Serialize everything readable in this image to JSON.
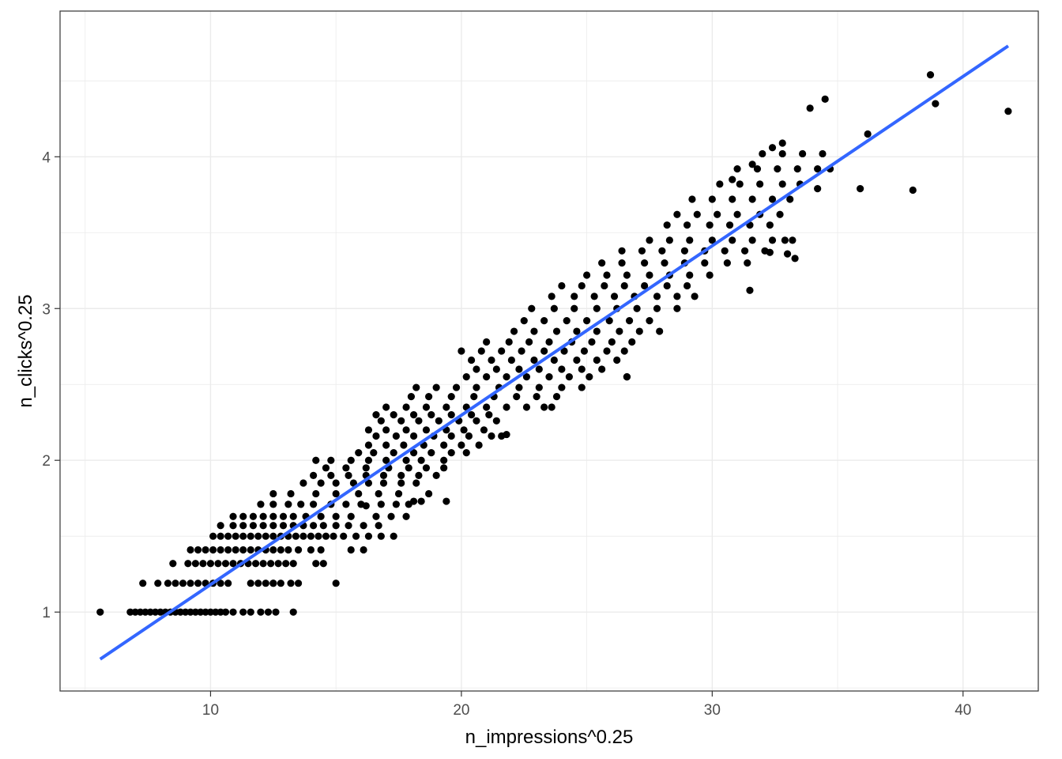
{
  "chart_data": {
    "type": "scatter",
    "xlabel": "n_impressions^0.25",
    "ylabel": "n_clicks^0.25",
    "xlim": [
      4.0,
      43.0
    ],
    "ylim": [
      0.48,
      4.96
    ],
    "x_ticks": [
      10,
      20,
      30,
      40
    ],
    "y_ticks": [
      1,
      2,
      3,
      4
    ],
    "grid": true,
    "legend": "none",
    "colors": {
      "points": "#000000",
      "fit": "#3366ff",
      "grid": "#ebebeb",
      "panel_border": "#333333"
    },
    "fit_line": {
      "method": "linear",
      "x": [
        5.6,
        41.8
      ],
      "y": [
        0.69,
        4.73
      ]
    },
    "points": [
      [
        5.6,
        1.0
      ],
      [
        6.8,
        1.0
      ],
      [
        7.0,
        1.0
      ],
      [
        7.2,
        1.0
      ],
      [
        7.4,
        1.0
      ],
      [
        7.6,
        1.0
      ],
      [
        7.8,
        1.0
      ],
      [
        8.0,
        1.0
      ],
      [
        8.2,
        1.0
      ],
      [
        8.4,
        1.0
      ],
      [
        8.6,
        1.0
      ],
      [
        8.8,
        1.0
      ],
      [
        9.0,
        1.0
      ],
      [
        9.2,
        1.0
      ],
      [
        9.4,
        1.0
      ],
      [
        9.6,
        1.0
      ],
      [
        9.8,
        1.0
      ],
      [
        10.0,
        1.0
      ],
      [
        10.2,
        1.0
      ],
      [
        10.4,
        1.0
      ],
      [
        10.6,
        1.0
      ],
      [
        10.9,
        1.0
      ],
      [
        11.3,
        1.0
      ],
      [
        11.6,
        1.0
      ],
      [
        12.0,
        1.0
      ],
      [
        12.3,
        1.0
      ],
      [
        12.6,
        1.0
      ],
      [
        13.3,
        1.0
      ],
      [
        7.3,
        1.19
      ],
      [
        7.9,
        1.19
      ],
      [
        8.3,
        1.19
      ],
      [
        8.6,
        1.19
      ],
      [
        8.9,
        1.19
      ],
      [
        9.2,
        1.19
      ],
      [
        9.5,
        1.19
      ],
      [
        9.8,
        1.19
      ],
      [
        10.1,
        1.19
      ],
      [
        10.4,
        1.19
      ],
      [
        10.7,
        1.19
      ],
      [
        11.6,
        1.19
      ],
      [
        11.9,
        1.19
      ],
      [
        12.2,
        1.19
      ],
      [
        12.5,
        1.19
      ],
      [
        12.8,
        1.19
      ],
      [
        13.2,
        1.19
      ],
      [
        13.5,
        1.19
      ],
      [
        15.0,
        1.19
      ],
      [
        8.5,
        1.32
      ],
      [
        9.1,
        1.32
      ],
      [
        9.4,
        1.32
      ],
      [
        9.7,
        1.32
      ],
      [
        10.0,
        1.32
      ],
      [
        10.3,
        1.32
      ],
      [
        10.6,
        1.32
      ],
      [
        10.9,
        1.32
      ],
      [
        11.2,
        1.32
      ],
      [
        11.5,
        1.32
      ],
      [
        11.8,
        1.32
      ],
      [
        12.1,
        1.32
      ],
      [
        12.4,
        1.32
      ],
      [
        12.7,
        1.32
      ],
      [
        13.0,
        1.32
      ],
      [
        13.3,
        1.32
      ],
      [
        14.2,
        1.32
      ],
      [
        14.5,
        1.32
      ],
      [
        9.2,
        1.41
      ],
      [
        9.5,
        1.41
      ],
      [
        9.8,
        1.41
      ],
      [
        10.1,
        1.41
      ],
      [
        10.4,
        1.41
      ],
      [
        10.7,
        1.41
      ],
      [
        11.0,
        1.41
      ],
      [
        11.3,
        1.41
      ],
      [
        11.6,
        1.41
      ],
      [
        11.9,
        1.41
      ],
      [
        12.2,
        1.41
      ],
      [
        12.5,
        1.41
      ],
      [
        12.8,
        1.41
      ],
      [
        13.1,
        1.41
      ],
      [
        13.5,
        1.41
      ],
      [
        14.0,
        1.41
      ],
      [
        14.4,
        1.41
      ],
      [
        15.6,
        1.41
      ],
      [
        16.1,
        1.41
      ],
      [
        10.1,
        1.5
      ],
      [
        10.4,
        1.5
      ],
      [
        10.7,
        1.5
      ],
      [
        11.0,
        1.5
      ],
      [
        11.3,
        1.5
      ],
      [
        11.6,
        1.5
      ],
      [
        11.9,
        1.5
      ],
      [
        12.2,
        1.5
      ],
      [
        12.5,
        1.5
      ],
      [
        12.8,
        1.5
      ],
      [
        13.1,
        1.5
      ],
      [
        13.4,
        1.5
      ],
      [
        13.7,
        1.5
      ],
      [
        14.0,
        1.5
      ],
      [
        14.3,
        1.5
      ],
      [
        14.6,
        1.5
      ],
      [
        14.9,
        1.5
      ],
      [
        15.3,
        1.5
      ],
      [
        15.8,
        1.5
      ],
      [
        16.3,
        1.5
      ],
      [
        16.8,
        1.5
      ],
      [
        17.3,
        1.5
      ],
      [
        10.4,
        1.57
      ],
      [
        10.9,
        1.57
      ],
      [
        11.3,
        1.57
      ],
      [
        11.7,
        1.57
      ],
      [
        12.1,
        1.57
      ],
      [
        12.5,
        1.57
      ],
      [
        12.9,
        1.57
      ],
      [
        13.3,
        1.57
      ],
      [
        13.7,
        1.57
      ],
      [
        14.1,
        1.57
      ],
      [
        14.5,
        1.57
      ],
      [
        15.0,
        1.57
      ],
      [
        15.5,
        1.57
      ],
      [
        16.1,
        1.57
      ],
      [
        16.7,
        1.57
      ],
      [
        10.9,
        1.63
      ],
      [
        11.3,
        1.63
      ],
      [
        11.7,
        1.63
      ],
      [
        12.1,
        1.63
      ],
      [
        12.5,
        1.63
      ],
      [
        12.9,
        1.63
      ],
      [
        13.3,
        1.63
      ],
      [
        13.8,
        1.63
      ],
      [
        14.4,
        1.63
      ],
      [
        15.0,
        1.63
      ],
      [
        15.6,
        1.63
      ],
      [
        16.6,
        1.63
      ],
      [
        17.2,
        1.63
      ],
      [
        17.8,
        1.63
      ],
      [
        12.0,
        1.71
      ],
      [
        12.5,
        1.71
      ],
      [
        13.1,
        1.71
      ],
      [
        13.6,
        1.71
      ],
      [
        14.1,
        1.71
      ],
      [
        14.8,
        1.71
      ],
      [
        15.4,
        1.71
      ],
      [
        16.0,
        1.71
      ],
      [
        16.8,
        1.71
      ],
      [
        17.4,
        1.71
      ],
      [
        17.9,
        1.71
      ],
      [
        12.5,
        1.78
      ],
      [
        13.2,
        1.78
      ],
      [
        14.2,
        1.78
      ],
      [
        15.0,
        1.78
      ],
      [
        15.9,
        1.78
      ],
      [
        16.7,
        1.78
      ],
      [
        17.5,
        1.78
      ],
      [
        18.1,
        1.73
      ],
      [
        18.4,
        1.73
      ],
      [
        13.7,
        1.85
      ],
      [
        14.4,
        1.85
      ],
      [
        15.0,
        1.85
      ],
      [
        15.7,
        1.85
      ],
      [
        16.3,
        1.85
      ],
      [
        16.9,
        1.85
      ],
      [
        17.6,
        1.85
      ],
      [
        18.2,
        1.85
      ],
      [
        14.1,
        1.9
      ],
      [
        14.8,
        1.9
      ],
      [
        15.5,
        1.9
      ],
      [
        16.2,
        1.9
      ],
      [
        16.9,
        1.9
      ],
      [
        17.6,
        1.9
      ],
      [
        18.3,
        1.9
      ],
      [
        19.0,
        1.9
      ],
      [
        14.6,
        1.95
      ],
      [
        15.4,
        1.95
      ],
      [
        16.2,
        1.95
      ],
      [
        17.1,
        1.95
      ],
      [
        17.9,
        1.95
      ],
      [
        18.6,
        1.95
      ],
      [
        19.3,
        1.95
      ],
      [
        14.2,
        2.0
      ],
      [
        14.8,
        2.0
      ],
      [
        15.6,
        2.0
      ],
      [
        16.3,
        2.0
      ],
      [
        17.0,
        2.0
      ],
      [
        17.8,
        2.0
      ],
      [
        18.4,
        2.0
      ],
      [
        19.3,
        2.0
      ],
      [
        15.9,
        2.05
      ],
      [
        16.5,
        2.05
      ],
      [
        17.3,
        2.05
      ],
      [
        18.1,
        2.05
      ],
      [
        18.8,
        2.05
      ],
      [
        19.6,
        2.05
      ],
      [
        20.2,
        2.05
      ],
      [
        16.3,
        2.1
      ],
      [
        17.0,
        2.1
      ],
      [
        17.7,
        2.1
      ],
      [
        18.5,
        2.1
      ],
      [
        19.3,
        2.1
      ],
      [
        20.0,
        2.1
      ],
      [
        20.7,
        2.1
      ],
      [
        16.6,
        2.16
      ],
      [
        17.4,
        2.16
      ],
      [
        18.1,
        2.16
      ],
      [
        18.9,
        2.16
      ],
      [
        19.6,
        2.16
      ],
      [
        20.3,
        2.16
      ],
      [
        21.2,
        2.16
      ],
      [
        16.3,
        2.2
      ],
      [
        17.0,
        2.2
      ],
      [
        17.8,
        2.2
      ],
      [
        18.6,
        2.2
      ],
      [
        19.4,
        2.2
      ],
      [
        20.1,
        2.2
      ],
      [
        20.9,
        2.2
      ],
      [
        21.6,
        2.16
      ],
      [
        16.8,
        2.26
      ],
      [
        17.6,
        2.26
      ],
      [
        18.3,
        2.26
      ],
      [
        19.1,
        2.26
      ],
      [
        19.9,
        2.26
      ],
      [
        20.6,
        2.26
      ],
      [
        21.4,
        2.26
      ],
      [
        16.6,
        2.3
      ],
      [
        17.3,
        2.3
      ],
      [
        18.1,
        2.3
      ],
      [
        18.8,
        2.3
      ],
      [
        19.6,
        2.3
      ],
      [
        20.4,
        2.3
      ],
      [
        21.1,
        2.3
      ],
      [
        17.0,
        2.35
      ],
      [
        17.8,
        2.35
      ],
      [
        18.6,
        2.35
      ],
      [
        19.4,
        2.35
      ],
      [
        20.2,
        2.35
      ],
      [
        21.0,
        2.35
      ],
      [
        21.8,
        2.35
      ],
      [
        22.6,
        2.35
      ],
      [
        23.3,
        2.35
      ],
      [
        18.0,
        2.42
      ],
      [
        18.7,
        2.42
      ],
      [
        19.6,
        2.42
      ],
      [
        20.5,
        2.42
      ],
      [
        21.3,
        2.42
      ],
      [
        22.2,
        2.42
      ],
      [
        23.0,
        2.42
      ],
      [
        23.8,
        2.42
      ],
      [
        18.2,
        2.48
      ],
      [
        19.0,
        2.48
      ],
      [
        19.8,
        2.48
      ],
      [
        20.6,
        2.48
      ],
      [
        21.5,
        2.48
      ],
      [
        22.3,
        2.48
      ],
      [
        23.1,
        2.48
      ],
      [
        24.0,
        2.48
      ],
      [
        24.8,
        2.48
      ],
      [
        20.2,
        2.55
      ],
      [
        21.0,
        2.55
      ],
      [
        21.8,
        2.55
      ],
      [
        22.6,
        2.55
      ],
      [
        23.5,
        2.55
      ],
      [
        24.3,
        2.55
      ],
      [
        25.1,
        2.55
      ],
      [
        26.6,
        2.55
      ],
      [
        20.6,
        2.6
      ],
      [
        21.4,
        2.6
      ],
      [
        22.3,
        2.6
      ],
      [
        23.1,
        2.6
      ],
      [
        24.0,
        2.6
      ],
      [
        24.8,
        2.6
      ],
      [
        25.6,
        2.6
      ],
      [
        20.4,
        2.66
      ],
      [
        21.2,
        2.66
      ],
      [
        22.0,
        2.66
      ],
      [
        22.9,
        2.66
      ],
      [
        23.7,
        2.66
      ],
      [
        24.6,
        2.66
      ],
      [
        25.4,
        2.66
      ],
      [
        26.2,
        2.66
      ],
      [
        20.0,
        2.72
      ],
      [
        20.8,
        2.72
      ],
      [
        21.6,
        2.72
      ],
      [
        22.4,
        2.72
      ],
      [
        23.3,
        2.72
      ],
      [
        24.1,
        2.72
      ],
      [
        24.9,
        2.72
      ],
      [
        25.8,
        2.72
      ],
      [
        26.5,
        2.72
      ],
      [
        21.0,
        2.78
      ],
      [
        21.9,
        2.78
      ],
      [
        22.7,
        2.78
      ],
      [
        23.5,
        2.78
      ],
      [
        24.4,
        2.78
      ],
      [
        25.2,
        2.78
      ],
      [
        26.0,
        2.78
      ],
      [
        26.8,
        2.78
      ],
      [
        22.1,
        2.85
      ],
      [
        22.9,
        2.85
      ],
      [
        23.8,
        2.85
      ],
      [
        24.6,
        2.85
      ],
      [
        25.4,
        2.85
      ],
      [
        26.3,
        2.85
      ],
      [
        27.1,
        2.85
      ],
      [
        27.9,
        2.85
      ],
      [
        22.5,
        2.92
      ],
      [
        23.3,
        2.92
      ],
      [
        24.2,
        2.92
      ],
      [
        25.0,
        2.92
      ],
      [
        25.9,
        2.92
      ],
      [
        26.7,
        2.92
      ],
      [
        27.5,
        2.92
      ],
      [
        22.8,
        3.0
      ],
      [
        23.7,
        3.0
      ],
      [
        24.5,
        3.0
      ],
      [
        25.4,
        3.0
      ],
      [
        26.2,
        3.0
      ],
      [
        27.0,
        3.0
      ],
      [
        27.8,
        3.0
      ],
      [
        28.6,
        3.0
      ],
      [
        23.6,
        3.08
      ],
      [
        24.5,
        3.08
      ],
      [
        25.3,
        3.08
      ],
      [
        26.1,
        3.08
      ],
      [
        26.9,
        3.08
      ],
      [
        27.8,
        3.08
      ],
      [
        28.6,
        3.08
      ],
      [
        29.3,
        3.08
      ],
      [
        24.0,
        3.15
      ],
      [
        24.8,
        3.15
      ],
      [
        25.7,
        3.15
      ],
      [
        26.5,
        3.15
      ],
      [
        27.3,
        3.15
      ],
      [
        28.2,
        3.15
      ],
      [
        29.0,
        3.15
      ],
      [
        25.0,
        3.22
      ],
      [
        25.8,
        3.22
      ],
      [
        26.6,
        3.22
      ],
      [
        27.5,
        3.22
      ],
      [
        28.3,
        3.22
      ],
      [
        29.1,
        3.22
      ],
      [
        29.9,
        3.22
      ],
      [
        25.6,
        3.3
      ],
      [
        26.4,
        3.3
      ],
      [
        27.3,
        3.3
      ],
      [
        28.1,
        3.3
      ],
      [
        28.9,
        3.3
      ],
      [
        29.7,
        3.3
      ],
      [
        30.6,
        3.3
      ],
      [
        31.4,
        3.3
      ],
      [
        26.4,
        3.38
      ],
      [
        27.2,
        3.38
      ],
      [
        28.0,
        3.38
      ],
      [
        28.9,
        3.38
      ],
      [
        29.7,
        3.38
      ],
      [
        30.5,
        3.38
      ],
      [
        31.3,
        3.38
      ],
      [
        32.1,
        3.38
      ],
      [
        27.5,
        3.45
      ],
      [
        28.3,
        3.45
      ],
      [
        29.1,
        3.45
      ],
      [
        30.0,
        3.45
      ],
      [
        30.8,
        3.45
      ],
      [
        31.6,
        3.45
      ],
      [
        32.4,
        3.45
      ],
      [
        33.2,
        3.45
      ],
      [
        28.2,
        3.55
      ],
      [
        29.0,
        3.55
      ],
      [
        29.9,
        3.55
      ],
      [
        30.7,
        3.55
      ],
      [
        31.5,
        3.55
      ],
      [
        32.3,
        3.55
      ],
      [
        28.6,
        3.62
      ],
      [
        29.4,
        3.62
      ],
      [
        30.2,
        3.62
      ],
      [
        31.0,
        3.62
      ],
      [
        31.9,
        3.62
      ],
      [
        32.7,
        3.62
      ],
      [
        29.2,
        3.72
      ],
      [
        30.0,
        3.72
      ],
      [
        30.8,
        3.72
      ],
      [
        31.6,
        3.72
      ],
      [
        32.4,
        3.72
      ],
      [
        33.1,
        3.72
      ],
      [
        30.3,
        3.82
      ],
      [
        31.1,
        3.82
      ],
      [
        31.9,
        3.82
      ],
      [
        32.8,
        3.82
      ],
      [
        33.5,
        3.82
      ],
      [
        31.0,
        3.92
      ],
      [
        31.8,
        3.92
      ],
      [
        32.6,
        3.92
      ],
      [
        33.4,
        3.92
      ],
      [
        34.2,
        3.92
      ],
      [
        32.0,
        4.02
      ],
      [
        32.8,
        4.02
      ],
      [
        33.6,
        4.02
      ],
      [
        34.4,
        4.02
      ],
      [
        32.4,
        4.06
      ],
      [
        32.8,
        4.09
      ],
      [
        30.8,
        3.85
      ],
      [
        31.6,
        3.95
      ],
      [
        33.9,
        4.32
      ],
      [
        34.5,
        4.38
      ],
      [
        34.2,
        3.79
      ],
      [
        34.7,
        3.92
      ],
      [
        36.2,
        4.15
      ],
      [
        35.9,
        3.79
      ],
      [
        38.0,
        3.78
      ],
      [
        38.7,
        4.54
      ],
      [
        38.9,
        4.35
      ],
      [
        41.8,
        4.3
      ],
      [
        31.5,
        3.12
      ],
      [
        32.3,
        3.37
      ],
      [
        33.3,
        3.33
      ],
      [
        32.9,
        3.45
      ],
      [
        33.0,
        3.36
      ],
      [
        26.6,
        2.55
      ],
      [
        23.6,
        2.35
      ],
      [
        21.8,
        2.17
      ],
      [
        19.4,
        1.73
      ],
      [
        18.7,
        1.78
      ],
      [
        16.2,
        1.7
      ],
      [
        12.5,
        1.19
      ]
    ]
  }
}
